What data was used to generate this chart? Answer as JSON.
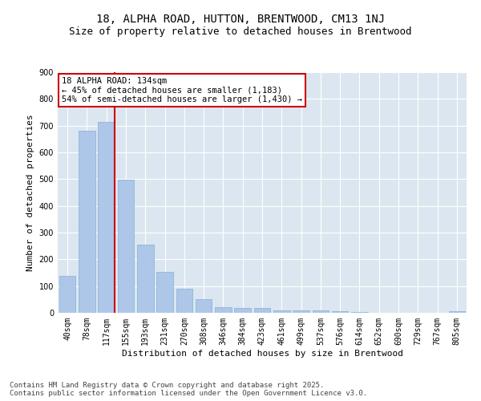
{
  "title1": "18, ALPHA ROAD, HUTTON, BRENTWOOD, CM13 1NJ",
  "title2": "Size of property relative to detached houses in Brentwood",
  "xlabel": "Distribution of detached houses by size in Brentwood",
  "ylabel": "Number of detached properties",
  "categories": [
    "40sqm",
    "78sqm",
    "117sqm",
    "155sqm",
    "193sqm",
    "231sqm",
    "270sqm",
    "308sqm",
    "346sqm",
    "384sqm",
    "423sqm",
    "461sqm",
    "499sqm",
    "537sqm",
    "576sqm",
    "614sqm",
    "652sqm",
    "690sqm",
    "729sqm",
    "767sqm",
    "805sqm"
  ],
  "values": [
    138,
    680,
    715,
    498,
    256,
    153,
    90,
    50,
    22,
    18,
    17,
    10,
    10,
    8,
    5,
    3,
    1,
    0,
    0,
    0,
    5
  ],
  "bar_color": "#aec6e8",
  "bar_edge_color": "#7fb3d9",
  "vline_x_index": 2,
  "vline_color": "#cc0000",
  "annotation_text": "18 ALPHA ROAD: 134sqm\n← 45% of detached houses are smaller (1,183)\n54% of semi-detached houses are larger (1,430) →",
  "annotation_box_color": "#cc0000",
  "annotation_text_color": "#000000",
  "ylim": [
    0,
    900
  ],
  "yticks": [
    0,
    100,
    200,
    300,
    400,
    500,
    600,
    700,
    800,
    900
  ],
  "bg_color": "#dce6f0",
  "footnote": "Contains HM Land Registry data © Crown copyright and database right 2025.\nContains public sector information licensed under the Open Government Licence v3.0.",
  "title1_fontsize": 10,
  "title2_fontsize": 9,
  "xlabel_fontsize": 8,
  "ylabel_fontsize": 8,
  "tick_fontsize": 7,
  "annotation_fontsize": 7.5,
  "footnote_fontsize": 6.5
}
